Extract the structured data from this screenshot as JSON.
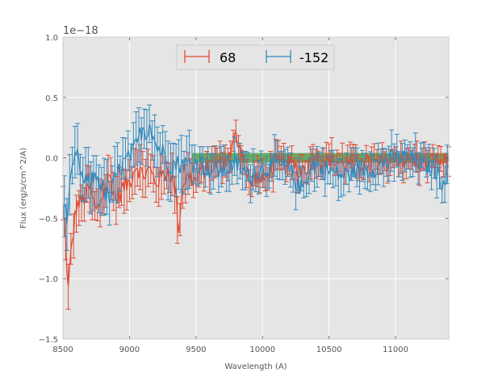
{
  "chart_data": {
    "type": "line",
    "title": "",
    "xlabel": "Wavelength (A)",
    "ylabel": "Flux (erg/s/cm^2/A)",
    "xlim": [
      8500,
      11400
    ],
    "ylim": [
      -1.5,
      1.0
    ],
    "x_ticks": [
      8500,
      9000,
      9500,
      10000,
      10500,
      11000
    ],
    "y_ticks": [
      -1.5,
      -1.0,
      -0.5,
      0.0,
      0.5,
      1.0
    ],
    "y_tick_labels": [
      "−1.5",
      "−1.0",
      "−0.5",
      "0.0",
      "0.5",
      "1.0"
    ],
    "y_offset_label": "1e−18",
    "grid": true,
    "legend_position": "top-center",
    "band": {
      "x": [
        9470,
        11400
      ],
      "y": [
        -0.04,
        0.04
      ],
      "color": "#3a9a3a"
    },
    "series": [
      {
        "name": "68",
        "color": "#e24a33",
        "anchors_x": [
          8500,
          8520,
          8540,
          8560,
          8600,
          8650,
          8700,
          8750,
          8800,
          8850,
          8900,
          8950,
          9000,
          9050,
          9100,
          9150,
          9200,
          9250,
          9300,
          9350,
          9370,
          9400,
          9450,
          9500,
          9550,
          9600,
          9650,
          9700,
          9750,
          9800,
          9850,
          9900,
          9950,
          10000,
          10100,
          10200,
          10300,
          10400,
          10500,
          10600,
          10700,
          10800,
          10900,
          11000,
          11100,
          11200,
          11300,
          11400
        ],
        "anchors_y": [
          -0.4,
          -0.7,
          -1.1,
          -0.8,
          -0.4,
          -0.35,
          -0.25,
          -0.45,
          -0.3,
          -0.15,
          -0.35,
          -0.25,
          -0.2,
          -0.05,
          -0.15,
          -0.1,
          -0.2,
          -0.15,
          -0.1,
          -0.3,
          -0.6,
          -0.2,
          -0.15,
          -0.2,
          -0.1,
          -0.1,
          -0.05,
          -0.05,
          0.0,
          0.18,
          0.05,
          -0.25,
          -0.15,
          -0.2,
          -0.05,
          -0.05,
          -0.1,
          0.0,
          -0.02,
          -0.05,
          -0.05,
          -0.05,
          -0.05,
          0.0,
          -0.02,
          -0.05,
          -0.02,
          -0.03
        ],
        "err": 0.12
      },
      {
        "name": "-152",
        "color": "#348abd",
        "anchors_x": [
          8500,
          8530,
          8560,
          8600,
          8650,
          8700,
          8750,
          8800,
          8850,
          8900,
          8950,
          9000,
          9050,
          9100,
          9130,
          9150,
          9200,
          9250,
          9300,
          9350,
          9400,
          9450,
          9500,
          9550,
          9600,
          9650,
          9700,
          9750,
          9800,
          9850,
          9900,
          9950,
          10000,
          10100,
          10200,
          10250,
          10300,
          10350,
          10400,
          10450,
          10500,
          10600,
          10700,
          10800,
          10900,
          11000,
          11100,
          11200,
          11300,
          11350,
          11400
        ],
        "anchors_y": [
          -0.35,
          -0.5,
          -0.2,
          0.05,
          -0.2,
          -0.2,
          -0.15,
          -0.25,
          -0.35,
          -0.15,
          -0.05,
          0.0,
          0.1,
          0.25,
          0.2,
          0.3,
          0.1,
          0.05,
          -0.05,
          -0.05,
          -0.05,
          -0.05,
          -0.05,
          -0.05,
          -0.1,
          -0.1,
          -0.1,
          -0.08,
          -0.05,
          -0.1,
          -0.15,
          -0.1,
          -0.1,
          -0.05,
          -0.1,
          -0.2,
          -0.25,
          -0.1,
          -0.05,
          -0.1,
          -0.1,
          -0.15,
          -0.1,
          -0.1,
          -0.05,
          0.0,
          0.0,
          -0.05,
          -0.1,
          -0.2,
          -0.1
        ],
        "err": 0.15
      }
    ]
  }
}
